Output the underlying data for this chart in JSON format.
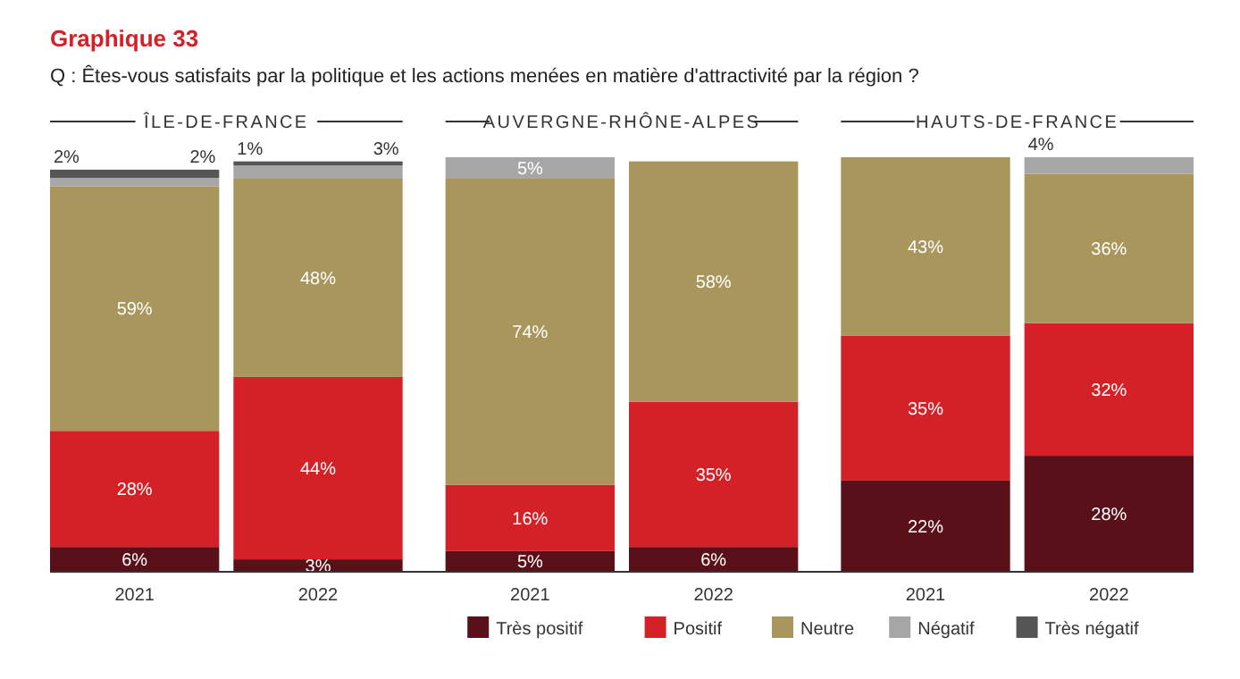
{
  "chart_data": {
    "type": "bar",
    "stacked": true,
    "title": "Graphique 33",
    "subtitle": "Q : Êtes-vous satisfaits par la politique et les actions menées en matière d'attractivité par la région ?",
    "categories": [
      "2021",
      "2022",
      "2021",
      "2022",
      "2021",
      "2022"
    ],
    "annotations": [
      "ÎLE-DE-FRANCE",
      "AUVERGNE-RHÔNE-ALPES",
      "HAUTS-DE-FRANCE"
    ],
    "series": [
      {
        "name": "Très positif",
        "color": "#5a1018",
        "values": [
          6,
          3,
          5,
          6,
          22,
          28
        ],
        "value_labels": [
          "6%",
          "3%",
          "5%",
          "6%",
          "22%",
          "28%"
        ]
      },
      {
        "name": "Positif",
        "color": "#d42027",
        "values": [
          28,
          44,
          16,
          35,
          35,
          32
        ],
        "value_labels": [
          "28%",
          "44%",
          "16%",
          "35%",
          "35%",
          "32%"
        ]
      },
      {
        "name": "Neutre",
        "color": "#a8965c",
        "values": [
          59,
          48,
          74,
          58,
          43,
          36
        ],
        "value_labels": [
          "59%",
          "48%",
          "74%",
          "58%",
          "43%",
          "36%"
        ]
      },
      {
        "name": "Négatif",
        "color": "#a6a6a6",
        "values": [
          2,
          3,
          5,
          null,
          null,
          4
        ],
        "value_labels": [
          "2%",
          "3%",
          "5%",
          null,
          null,
          "4%"
        ]
      },
      {
        "name": "Très négatif",
        "color": "#555555",
        "values": [
          2,
          1,
          null,
          null,
          null,
          null
        ],
        "value_labels": [
          "2%",
          "1%",
          null,
          null,
          null,
          null
        ]
      }
    ],
    "legend": "bottom right"
  }
}
